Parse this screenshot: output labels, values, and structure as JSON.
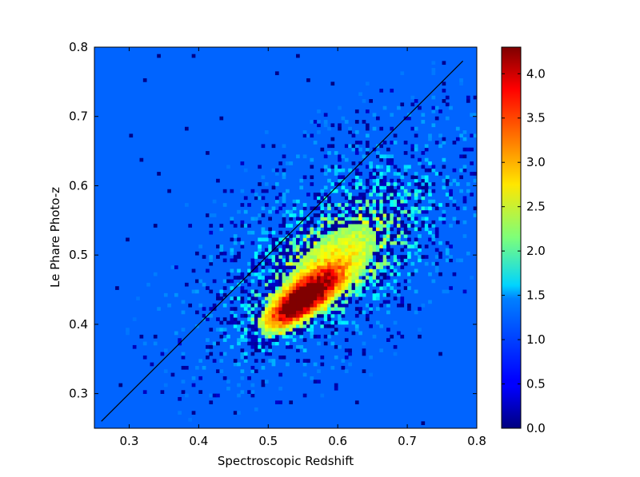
{
  "chart_data": {
    "type": "heatmap",
    "xlabel": "Spectroscopic Redshift",
    "ylabel": "Le Phare Photo-z",
    "xlim": [
      0.25,
      0.8
    ],
    "ylim": [
      0.25,
      0.8
    ],
    "xticks": [
      "0.3",
      "0.4",
      "0.5",
      "0.6",
      "0.7",
      "0.8"
    ],
    "yticks": [
      "0.3",
      "0.4",
      "0.5",
      "0.6",
      "0.7",
      "0.8"
    ],
    "colorbar": {
      "range": [
        0.0,
        4.3
      ],
      "ticks": [
        "0.0",
        "0.5",
        "1.0",
        "1.5",
        "2.0",
        "2.5",
        "3.0",
        "3.5",
        "4.0"
      ],
      "colormap": "jet"
    },
    "background_value": 1.0,
    "reference_line": {
      "x": [
        0.26,
        0.78
      ],
      "y": [
        0.26,
        0.78
      ],
      "color": "#000000"
    },
    "density_components": [
      {
        "cx": 0.548,
        "cy": 0.435,
        "sx": 0.035,
        "sy": 0.028,
        "rho": 0.75,
        "peak": 3.3
      },
      {
        "cx": 0.595,
        "cy": 0.49,
        "sx": 0.07,
        "sy": 0.06,
        "rho": 0.6,
        "peak": 1.1
      },
      {
        "cx": 0.6,
        "cy": 0.52,
        "sx": 0.13,
        "sy": 0.11,
        "rho": 0.55,
        "peak": 0.5
      }
    ]
  }
}
